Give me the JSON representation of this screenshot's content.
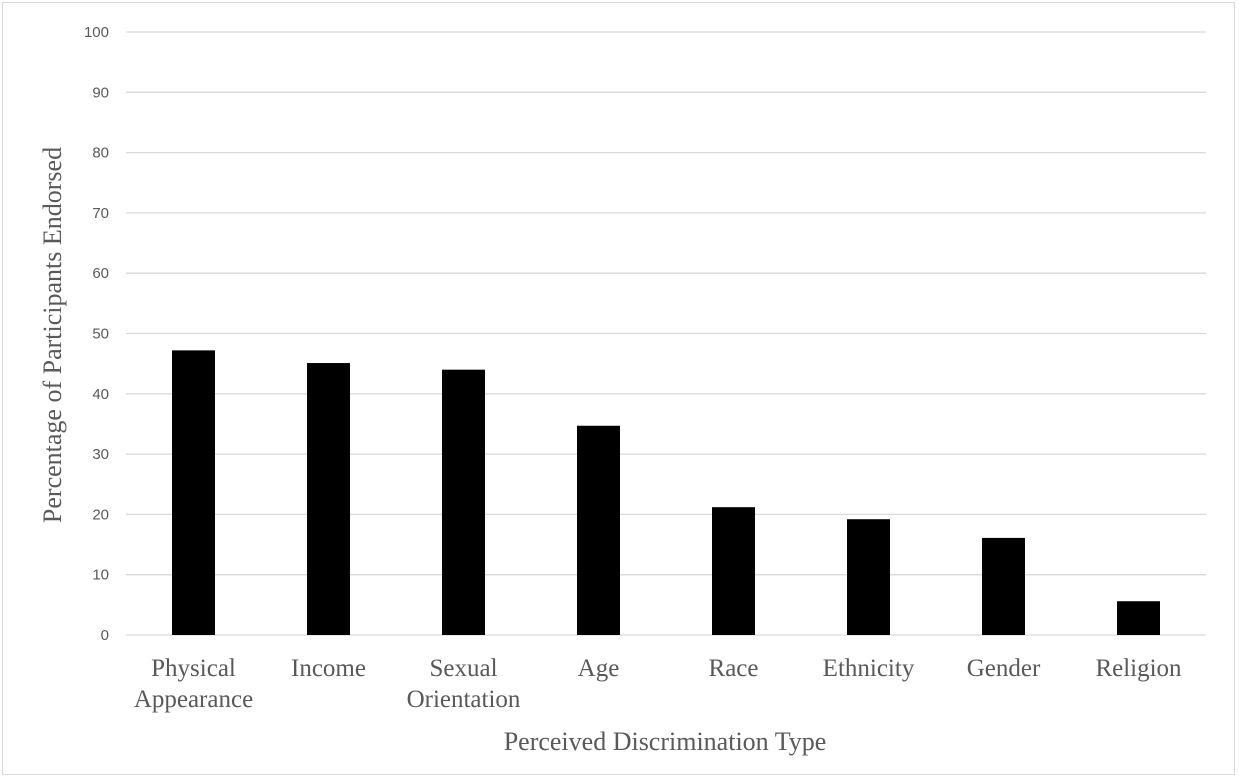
{
  "chart_data": {
    "type": "bar",
    "categories": [
      [
        "Physical",
        "Appearance"
      ],
      [
        "Income"
      ],
      [
        "Sexual",
        "Orientation"
      ],
      [
        "Age"
      ],
      [
        "Race"
      ],
      [
        "Ethnicity"
      ],
      [
        "Gender"
      ],
      [
        "Religion"
      ]
    ],
    "values": [
      47.2,
      45.1,
      44.0,
      34.7,
      21.2,
      19.2,
      16.1,
      5.6
    ],
    "title": "",
    "xlabel": "Perceived Discrimination Type",
    "ylabel": "Percentage of Participants Endorsed",
    "ylim": [
      0,
      100
    ],
    "yticks": [
      0,
      10,
      20,
      30,
      40,
      50,
      60,
      70,
      80,
      90,
      100
    ],
    "grid": true,
    "legend": "none",
    "bar_color": "#000000",
    "gridline_color": "#d9d9d9",
    "text_color": "#595959"
  }
}
